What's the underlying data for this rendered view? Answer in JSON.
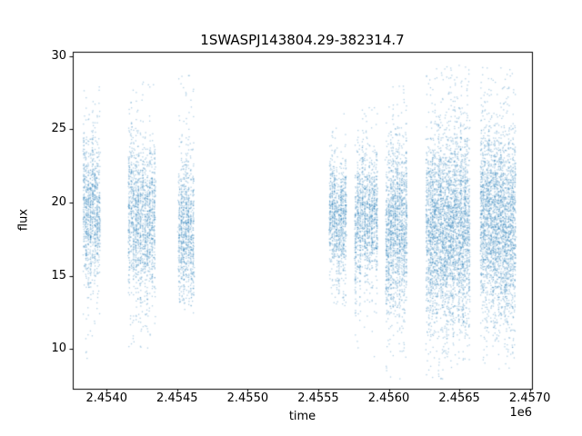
{
  "chart_data": {
    "type": "scatter",
    "title": "1SWASPJ143804.29-382314.7",
    "xlabel": "time",
    "ylabel": "flux",
    "x_offset_label": "1e6",
    "xlim": [
      2453760,
      2457015
    ],
    "ylim": [
      7.3,
      30.3
    ],
    "grid": false,
    "legend": null,
    "point_color": "#1f77b4",
    "point_alpha": 0.35,
    "x_ticks": [
      {
        "value": 2454000,
        "label": "2.4540"
      },
      {
        "value": 2454500,
        "label": "2.4545"
      },
      {
        "value": 2455000,
        "label": "2.4550"
      },
      {
        "value": 2455500,
        "label": "2.4555"
      },
      {
        "value": 2456000,
        "label": "2.4560"
      },
      {
        "value": 2456500,
        "label": "2.4565"
      },
      {
        "value": 2457000,
        "label": "2.4570"
      }
    ],
    "y_ticks": [
      {
        "value": 10,
        "label": "10"
      },
      {
        "value": 15,
        "label": "15"
      },
      {
        "value": 20,
        "label": "20"
      },
      {
        "value": 25,
        "label": "25"
      },
      {
        "value": 30,
        "label": "30"
      }
    ],
    "clusters": [
      {
        "x_center": 2453890,
        "x_halfwidth": 55,
        "n_points": 1000,
        "flux_mean": 19.5,
        "flux_sigma": 2.3,
        "flux_min": 9.2,
        "flux_max": 28.0,
        "columns": 8
      },
      {
        "x_center": 2454245,
        "x_halfwidth": 90,
        "n_points": 1500,
        "flux_mean": 18.8,
        "flux_sigma": 2.5,
        "flux_min": 10.0,
        "flux_max": 28.3,
        "columns": 12
      },
      {
        "x_center": 2454560,
        "x_halfwidth": 50,
        "n_points": 900,
        "flux_mean": 18.5,
        "flux_sigma": 2.3,
        "flux_min": 12.5,
        "flux_max": 28.8,
        "columns": 7
      },
      {
        "x_center": 2455635,
        "x_halfwidth": 55,
        "n_points": 900,
        "flux_mean": 19.4,
        "flux_sigma": 1.9,
        "flux_min": 13.0,
        "flux_max": 26.3,
        "columns": 8
      },
      {
        "x_center": 2455835,
        "x_halfwidth": 75,
        "n_points": 1200,
        "flux_mean": 18.9,
        "flux_sigma": 2.1,
        "flux_min": 9.5,
        "flux_max": 27.0,
        "columns": 10
      },
      {
        "x_center": 2456050,
        "x_halfwidth": 70,
        "n_points": 1500,
        "flux_mean": 18.4,
        "flux_sigma": 2.7,
        "flux_min": 8.0,
        "flux_max": 28.4,
        "columns": 10
      },
      {
        "x_center": 2456415,
        "x_halfwidth": 150,
        "n_points": 3500,
        "flux_mean": 18.3,
        "flux_sigma": 3.1,
        "flux_min": 8.0,
        "flux_max": 29.5,
        "columns": 22
      },
      {
        "x_center": 2456770,
        "x_halfwidth": 120,
        "n_points": 2800,
        "flux_mean": 18.7,
        "flux_sigma": 3.1,
        "flux_min": 8.6,
        "flux_max": 29.3,
        "columns": 18
      }
    ]
  }
}
